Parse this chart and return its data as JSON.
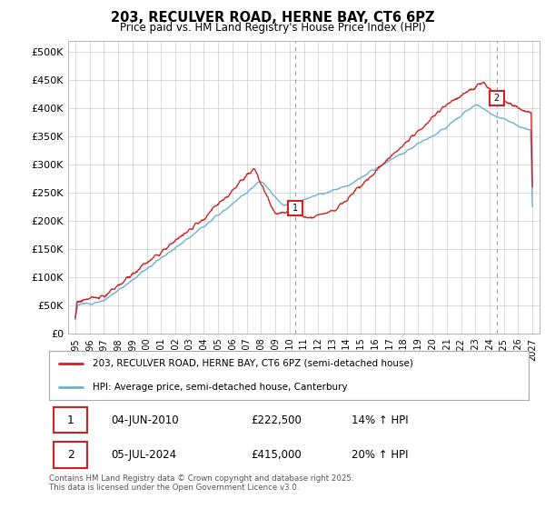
{
  "title": "203, RECULVER ROAD, HERNE BAY, CT6 6PZ",
  "subtitle": "Price paid vs. HM Land Registry's House Price Index (HPI)",
  "hpi_color": "#6ab0d8",
  "price_color": "#cc2222",
  "background_color": "#ffffff",
  "grid_color": "#cccccc",
  "transaction1_date": "04-JUN-2010",
  "transaction1_price": "£222,500",
  "transaction1_hpi": "14% ↑ HPI",
  "transaction2_date": "05-JUL-2024",
  "transaction2_price": "£415,000",
  "transaction2_hpi": "20% ↑ HPI",
  "legend_label1": "203, RECULVER ROAD, HERNE BAY, CT6 6PZ (semi-detached house)",
  "legend_label2": "HPI: Average price, semi-detached house, Canterbury",
  "footer": "Contains HM Land Registry data © Crown copyright and database right 2025.\nThis data is licensed under the Open Government Licence v3.0.",
  "ytick_labels": [
    "£0",
    "£50K",
    "£100K",
    "£150K",
    "£200K",
    "£250K",
    "£300K",
    "£350K",
    "£400K",
    "£450K",
    "£500K"
  ],
  "ytick_vals": [
    0,
    50000,
    100000,
    150000,
    200000,
    250000,
    300000,
    350000,
    400000,
    450000,
    500000
  ],
  "ylim": [
    0,
    520000
  ],
  "xlim_start": 1994.5,
  "xlim_end": 2027.5,
  "t1_x": 2010.42,
  "t2_x": 2024.5
}
